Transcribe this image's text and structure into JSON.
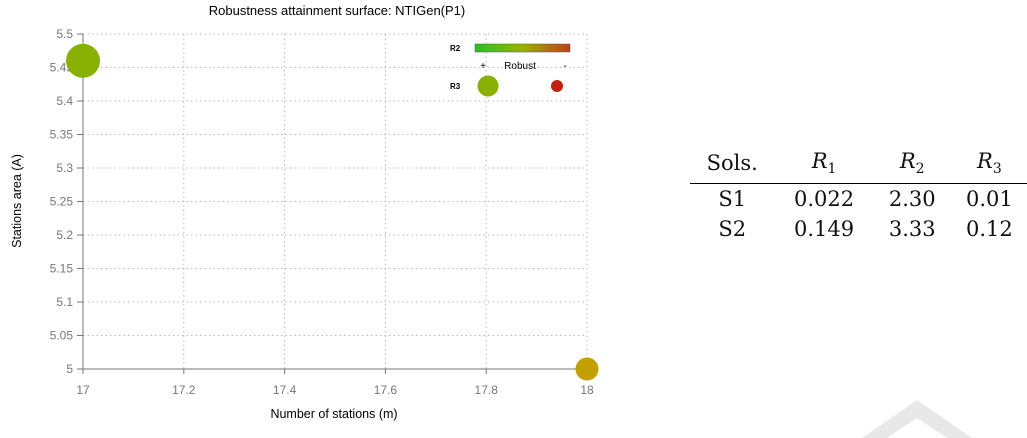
{
  "chart_data": {
    "type": "scatter",
    "title": "Robustness attainment surface: NTIGen(P1)",
    "xlabel": "Number of stations (m)",
    "ylabel": "Stations area (A)",
    "xlim": [
      17,
      18
    ],
    "ylim": [
      5,
      5.5
    ],
    "xticks": [
      "17",
      "17.2",
      "17.4",
      "17.6",
      "17.8",
      "18"
    ],
    "yticks": [
      "5",
      "5.05",
      "5.1",
      "5.15",
      "5.2",
      "5.25",
      "5.3",
      "5.35",
      "5.4",
      "5.45",
      "5.5"
    ],
    "grid": true,
    "points": [
      {
        "x": 17,
        "y": 5.46,
        "r3": 0.12,
        "color": "#87b000"
      },
      {
        "x": 18,
        "y": 5.0,
        "r3": 0.01,
        "color": "#c3a000"
      }
    ],
    "legend": {
      "placement": "top-right",
      "r2_label": "R2",
      "r3_label": "R3",
      "robust_plus": "+",
      "robust_text": "Robust",
      "robust_minus": "-",
      "gradient_colors": [
        "#22c322",
        "#9bb400",
        "#c03e1b"
      ],
      "plus_color": "#87b000",
      "minus_color": "#c0200e"
    }
  },
  "table": {
    "header": {
      "sols": "Sols.",
      "r1_var": "R",
      "r1_sub": "1",
      "r2_var": "R",
      "r2_sub": "2",
      "r3_var": "R",
      "r3_sub": "3"
    },
    "rows": [
      {
        "sol": "S1",
        "r1": "0.022",
        "r2": "2.30",
        "r3": "0.01"
      },
      {
        "sol": "S2",
        "r1": "0.149",
        "r2": "3.33",
        "r3": "0.12"
      }
    ]
  },
  "colors": {
    "grid": "#b8b8b8",
    "axis": "#777777",
    "watermark": "#e8e8e8"
  }
}
